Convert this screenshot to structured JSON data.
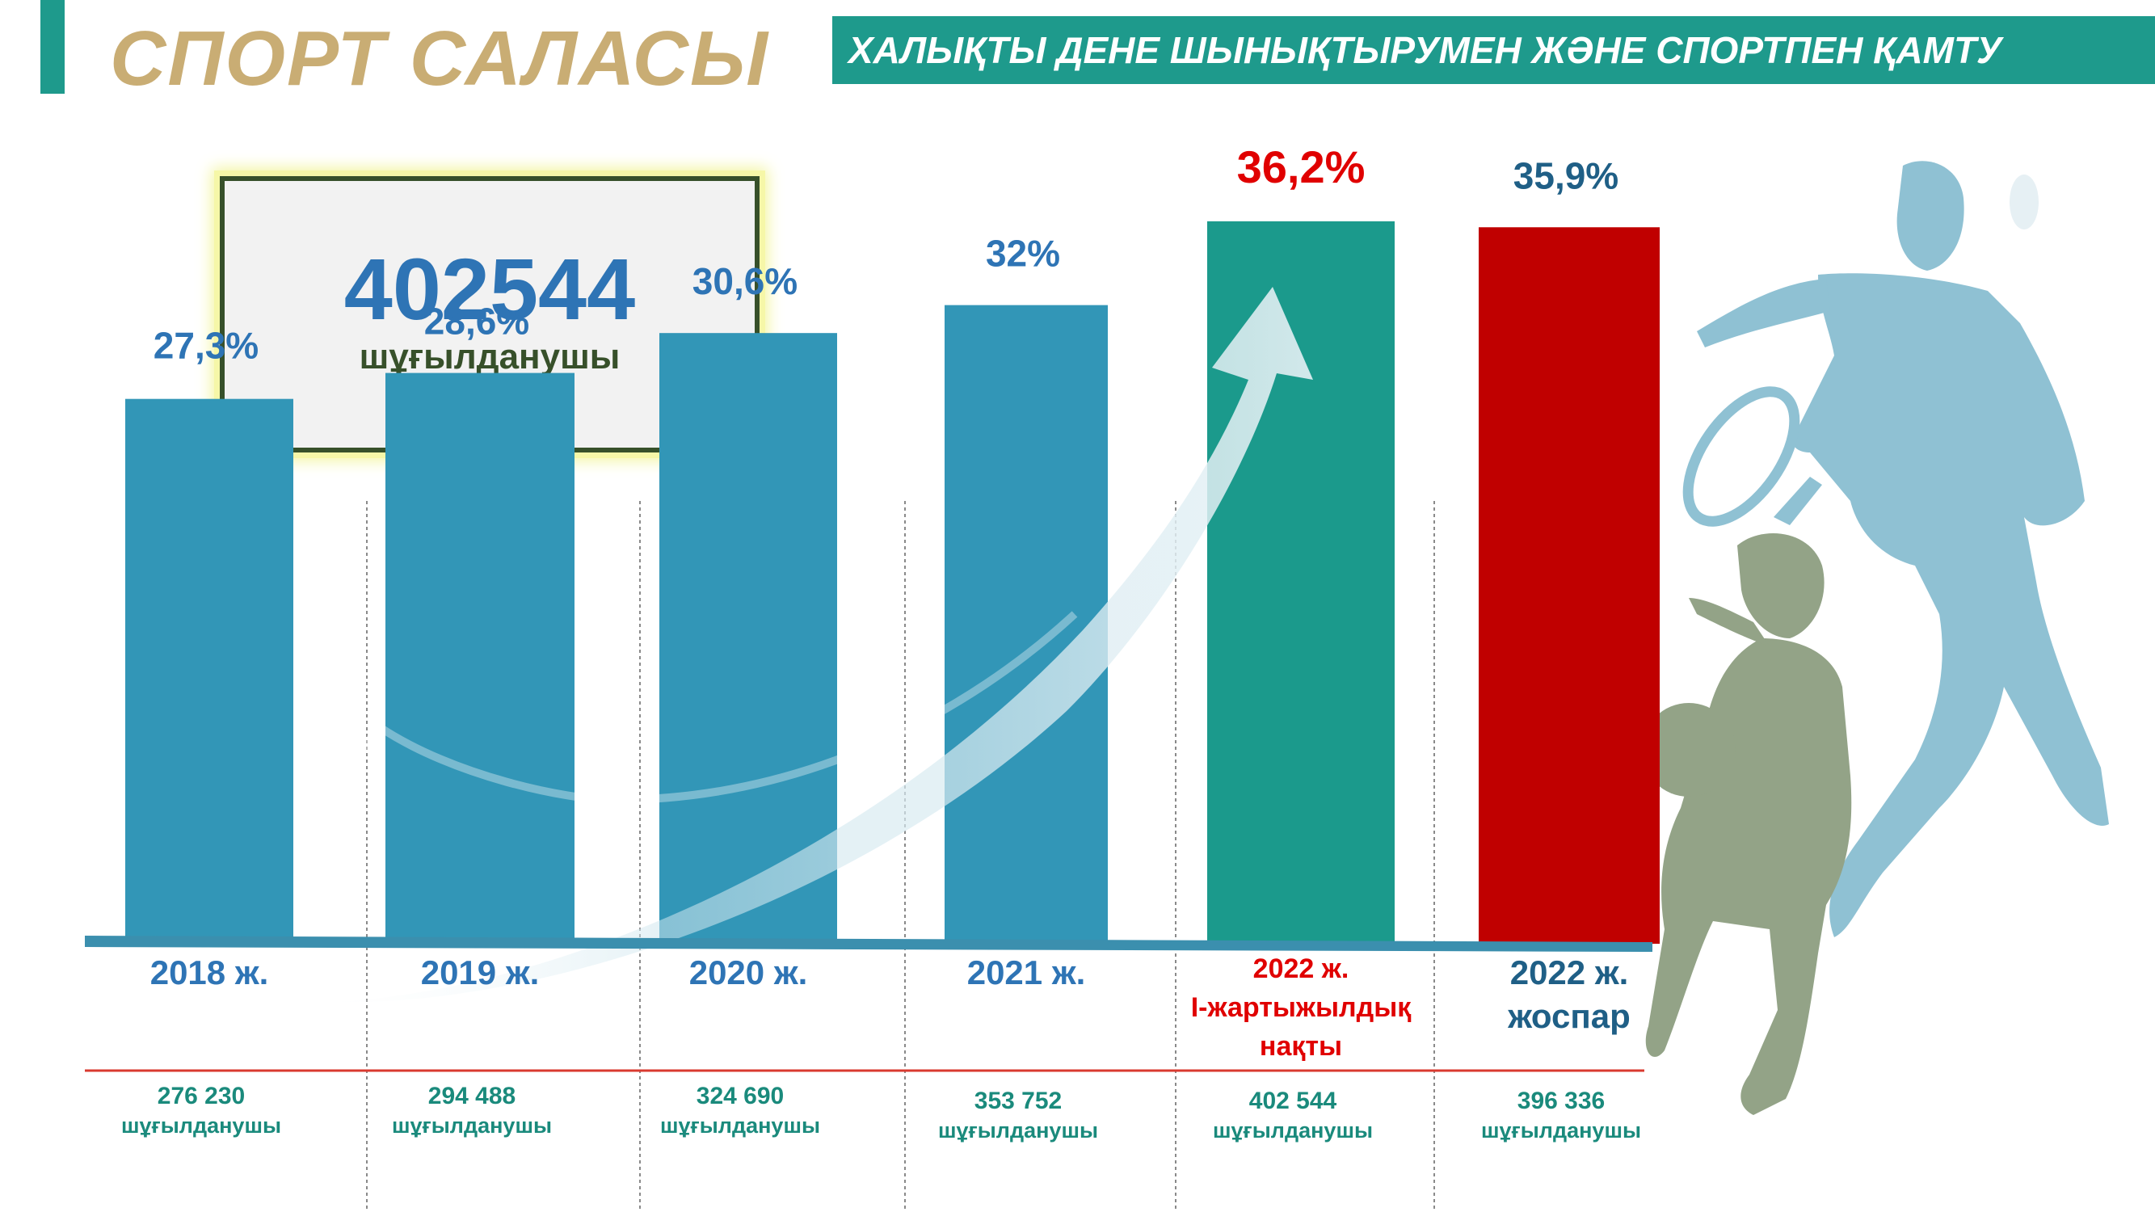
{
  "header": {
    "title": "СПОРТ САЛАСЫ",
    "banner": "ХАЛЫҚТЫ ДЕНЕ ШЫНЫҚТЫРУМЕН ЖӘНЕ СПОРТПЕН ҚАМТУ"
  },
  "summary": {
    "value": "402544",
    "label": "шұғылданушы"
  },
  "colors": {
    "accent": "#1e9a8c",
    "bar_regular": "#3296b7",
    "bar_actual": "#1b9a8c",
    "bar_plan": "#c00000",
    "title_gold": "#c9ad74",
    "value_blue": "#2e74b5",
    "label_red": "#e00000",
    "plan_label": "#1f5f86"
  },
  "chart_data": {
    "type": "bar",
    "unit": "%",
    "ylim": [
      0,
      40
    ],
    "categories": [
      "2018 ж.",
      "2019 ж.",
      "2020 ж.",
      "2021 ж.",
      "2022 ж. I-жартыжылдық нақты",
      "2022 ж. жоспар"
    ],
    "category_lines": [
      [
        "2018 ж."
      ],
      [
        "2019 ж."
      ],
      [
        "2020 ж."
      ],
      [
        "2021 ж."
      ],
      [
        "2022 ж.",
        "I-жартыжылдық",
        "нақты"
      ],
      [
        "2022 ж.",
        "жоспар"
      ]
    ],
    "values": [
      27.3,
      28.6,
      30.6,
      32,
      36.2,
      35.9
    ],
    "value_labels": [
      "27,3%",
      "28,6%",
      "30,6%",
      "32%",
      "36,2%",
      "35,9%"
    ],
    "bar_styles": [
      "regular",
      "regular",
      "regular",
      "regular",
      "actual",
      "plan"
    ],
    "participants": [
      "276 230",
      "294 488",
      "324 690",
      "353 752",
      "402 544",
      "396 336"
    ],
    "participants_unit": "шұғылданушы",
    "legend": "none",
    "grid": false
  }
}
